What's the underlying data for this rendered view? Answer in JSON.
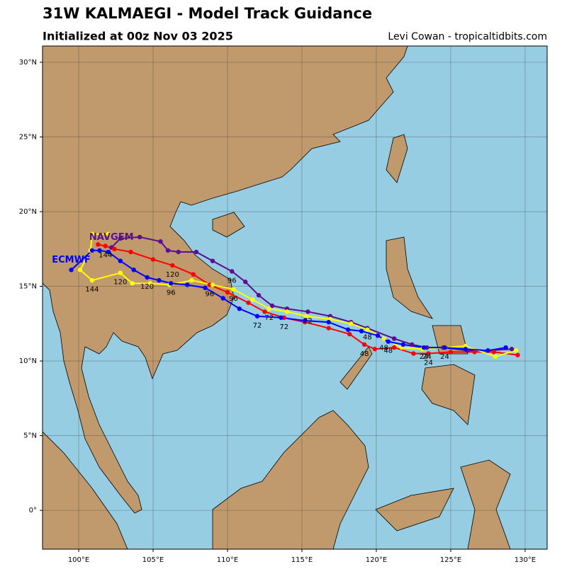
{
  "chart_data": {
    "type": "track-map",
    "title": "31W KALMAEGI - Model Track Guidance",
    "subtitle": "Initialized at 00z Nov 03 2025",
    "credit": "Levi Cowan - tropicaltidbits.com",
    "xlim": [
      97.57,
      131.48
    ],
    "ylim": [
      -2.6,
      31.09
    ],
    "xticks": [
      {
        "value": 100,
        "label": "100°E"
      },
      {
        "value": 105,
        "label": "105°E"
      },
      {
        "value": 110,
        "label": "110°E"
      },
      {
        "value": 115,
        "label": "115°E"
      },
      {
        "value": 120,
        "label": "120°E"
      },
      {
        "value": 125,
        "label": "125°E"
      },
      {
        "value": 130,
        "label": "130°E"
      }
    ],
    "yticks": [
      {
        "value": 0,
        "label": "0°"
      },
      {
        "value": 5,
        "label": "5°N"
      },
      {
        "value": 10,
        "label": "10°N"
      },
      {
        "value": 15,
        "label": "15°N"
      },
      {
        "value": 20,
        "label": "20°N"
      },
      {
        "value": 25,
        "label": "25°N"
      },
      {
        "value": 30,
        "label": "30°N"
      }
    ],
    "grid": true,
    "series": [
      {
        "name": "NAVGEM",
        "color": "#5a0e91",
        "x": [
          129.1,
          127.5,
          126.1,
          124.5,
          123.4,
          122.4,
          121.2,
          119.4,
          118.3,
          116.9,
          115.4,
          114.0,
          113.0,
          112.1,
          111.2,
          110.3,
          109.0,
          107.9,
          106.7,
          106.0,
          105.5,
          104.1,
          102.8,
          102.2
        ],
        "y": [
          10.8,
          10.7,
          10.7,
          10.9,
          10.9,
          11.1,
          11.5,
          12.2,
          12.6,
          13.0,
          13.3,
          13.5,
          13.7,
          14.4,
          15.3,
          16.0,
          16.7,
          17.3,
          17.3,
          17.4,
          18.0,
          18.3,
          18.2,
          17.6
        ],
        "labels": [
          null,
          null,
          null,
          null,
          24,
          null,
          null,
          48,
          null,
          null,
          72,
          null,
          null,
          null,
          null,
          96,
          null,
          null,
          null,
          null,
          null,
          null,
          null,
          null
        ]
      },
      {
        "color": "#ff0000",
        "x": [
          129.5,
          127.9,
          126.6,
          125.0,
          123.5,
          122.5,
          121.2,
          119.9,
          119.2,
          118.2,
          116.8,
          115.2,
          113.8,
          112.5,
          111.4,
          110.0,
          108.8,
          107.7,
          106.3,
          105.0,
          103.5,
          102.4,
          101.8,
          101.3
        ],
        "y": [
          10.4,
          10.6,
          10.6,
          10.6,
          10.5,
          10.5,
          10.9,
          10.8,
          11.1,
          11.8,
          12.2,
          12.6,
          12.9,
          13.3,
          13.9,
          14.6,
          15.1,
          15.8,
          16.4,
          16.8,
          17.3,
          17.5,
          17.7,
          17.8
        ],
        "labels": [
          null,
          null,
          null,
          null,
          24,
          null,
          null,
          null,
          48,
          null,
          null,
          null,
          72,
          null,
          null,
          null,
          96,
          null,
          120,
          null,
          null,
          null,
          144,
          null
        ]
      },
      {
        "color": "#ffff00",
        "x": [
          129.4,
          128.0,
          126.0,
          124.6,
          123.1,
          121.7,
          120.5,
          119.4,
          118.3,
          116.9,
          115.3,
          114.0,
          112.8,
          111.7,
          110.4,
          109.0,
          107.6,
          106.1,
          104.8,
          103.6,
          102.8,
          100.9,
          100.1,
          100.8,
          100.9,
          102.0
        ],
        "y": [
          10.7,
          10.3,
          11.0,
          10.9,
          10.8,
          10.9,
          11.5,
          12.1,
          12.5,
          12.8,
          13.0,
          13.3,
          13.5,
          14.1,
          14.8,
          15.1,
          15.4,
          15.1,
          15.2,
          15.2,
          15.9,
          15.4,
          16.1,
          17.4,
          18.5,
          18.5
        ],
        "labels": [
          null,
          null,
          null,
          24,
          null,
          null,
          48,
          null,
          null,
          null,
          null,
          null,
          72,
          null,
          96,
          null,
          null,
          null,
          null,
          null,
          120,
          144,
          null,
          null,
          null,
          null
        ]
      },
      {
        "name": "ECMWF",
        "color": "#0000ff",
        "x": [
          128.7,
          127.5,
          126.0,
          124.6,
          123.2,
          121.8,
          120.8,
          120.1,
          119.0,
          118.1,
          116.8,
          115.2,
          113.6,
          112.0,
          110.8,
          109.7,
          108.5,
          107.3,
          106.2,
          105.4,
          104.6,
          103.7,
          102.8,
          102.0,
          101.4,
          100.9,
          99.5
        ],
        "y": [
          10.9,
          10.7,
          10.8,
          10.9,
          10.9,
          11.1,
          11.3,
          11.7,
          12.0,
          12.1,
          12.6,
          12.7,
          12.9,
          13.0,
          13.5,
          14.2,
          14.9,
          15.1,
          15.2,
          15.4,
          15.6,
          16.1,
          16.7,
          17.3,
          17.4,
          17.4,
          16.1
        ],
        "labels": [
          null,
          null,
          null,
          null,
          24,
          null,
          48,
          null,
          null,
          null,
          null,
          null,
          null,
          72,
          null,
          null,
          null,
          null,
          96,
          null,
          120,
          null,
          null,
          null,
          null,
          null,
          null
        ]
      }
    ]
  }
}
